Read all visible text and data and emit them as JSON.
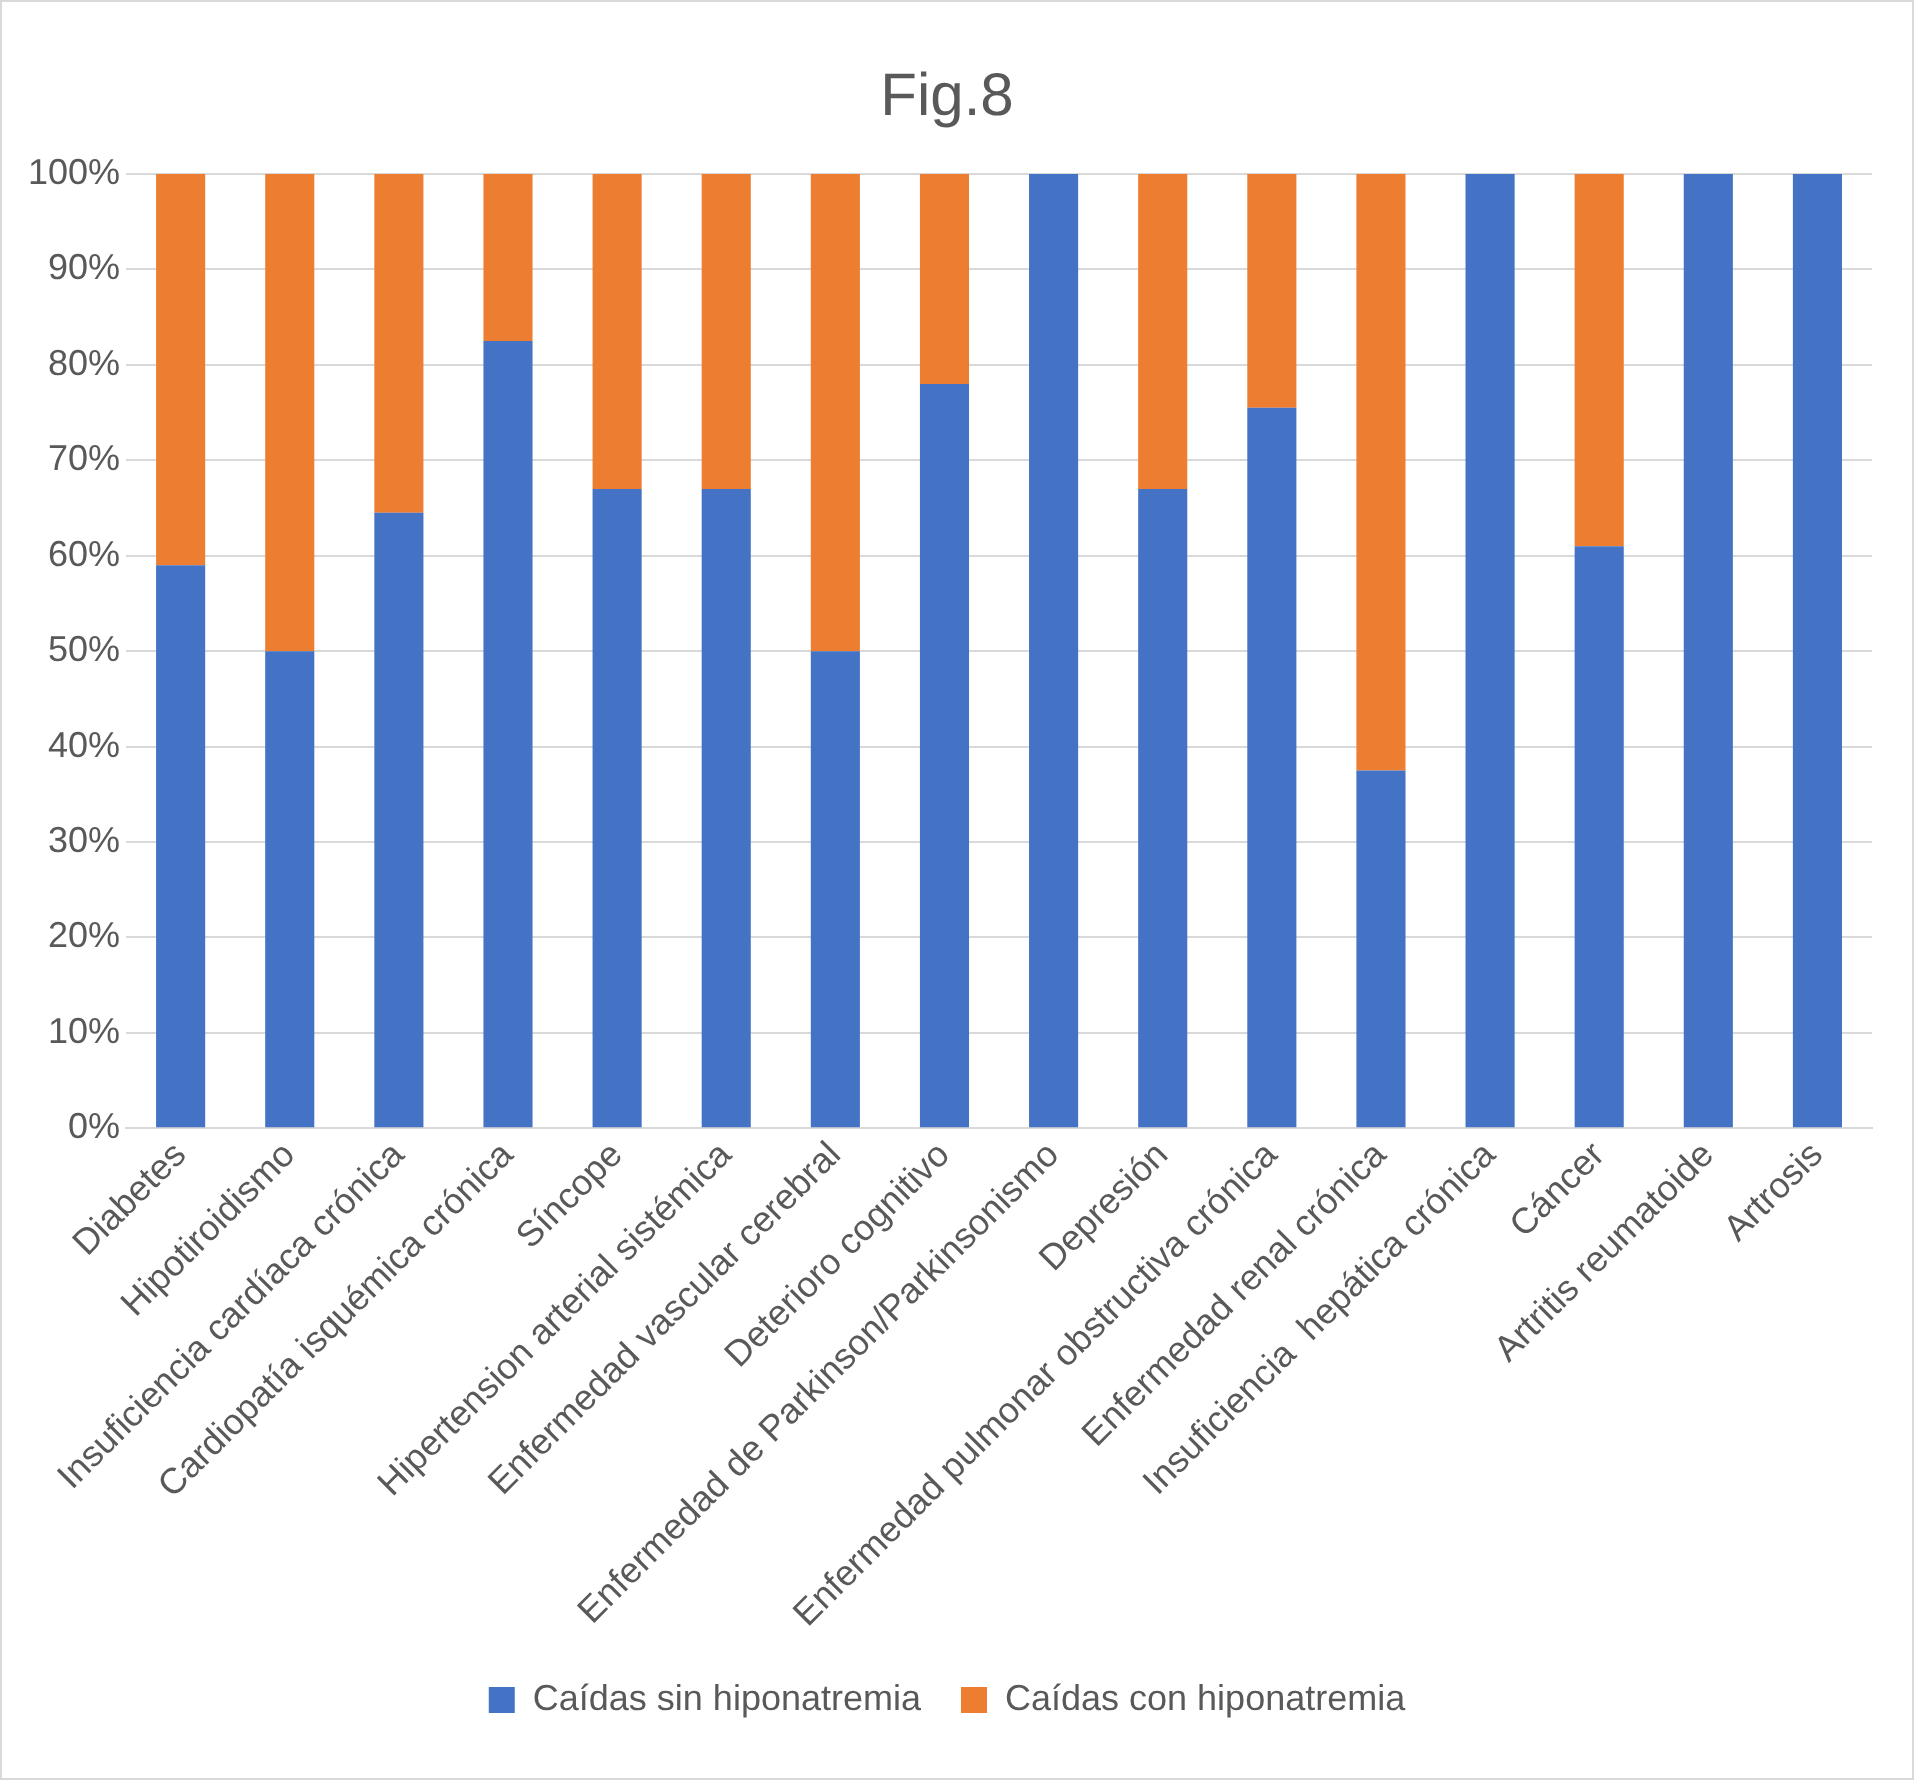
{
  "chart_data": {
    "type": "bar",
    "title": "Fig.8",
    "stacked": true,
    "categories": [
      "Diabetes",
      "Hipotiroidismo",
      "Insuficiencia cardíaca crónica",
      "Cardiopatía isquémica crónica",
      "Síncope",
      "Hipertension arterial sistémica",
      "Enfermedad vascular cerebral",
      "Deterioro cognitivo",
      "Enfermedad de Parkinson/Parkinsonismo",
      "Depresión",
      "Enfermedad pulmonar obstructiva crónica",
      "Enfermedad renal crónica",
      "Insuficiencia  hepática crónica",
      "Cáncer",
      "Artritis reumatoide",
      "Artrosis"
    ],
    "series": [
      {
        "name": "Caídas sin hiponatremia",
        "color": "#4472c4",
        "values": [
          59,
          50,
          64.5,
          82.5,
          67,
          67,
          50,
          78,
          100,
          67,
          75.5,
          37.5,
          100,
          61,
          100,
          100
        ]
      },
      {
        "name": "Caídas con hiponatremia",
        "color": "#ed7d31",
        "values": [
          41,
          50,
          35.5,
          17.5,
          33,
          33,
          50,
          22,
          0,
          33,
          24.5,
          62.5,
          0,
          39,
          0,
          0
        ]
      }
    ],
    "ylim": [
      0,
      100
    ],
    "yticks": [
      {
        "value": 0,
        "label": "0%"
      },
      {
        "value": 10,
        "label": "10%"
      },
      {
        "value": 20,
        "label": "20%"
      },
      {
        "value": 30,
        "label": "30%"
      },
      {
        "value": 40,
        "label": "40%"
      },
      {
        "value": 50,
        "label": "50%"
      },
      {
        "value": 60,
        "label": "60%"
      },
      {
        "value": 70,
        "label": "70%"
      },
      {
        "value": 80,
        "label": "80%"
      },
      {
        "value": 90,
        "label": "90%"
      },
      {
        "value": 100,
        "label": "100%"
      }
    ],
    "grid": "y",
    "legend": "bottom"
  }
}
